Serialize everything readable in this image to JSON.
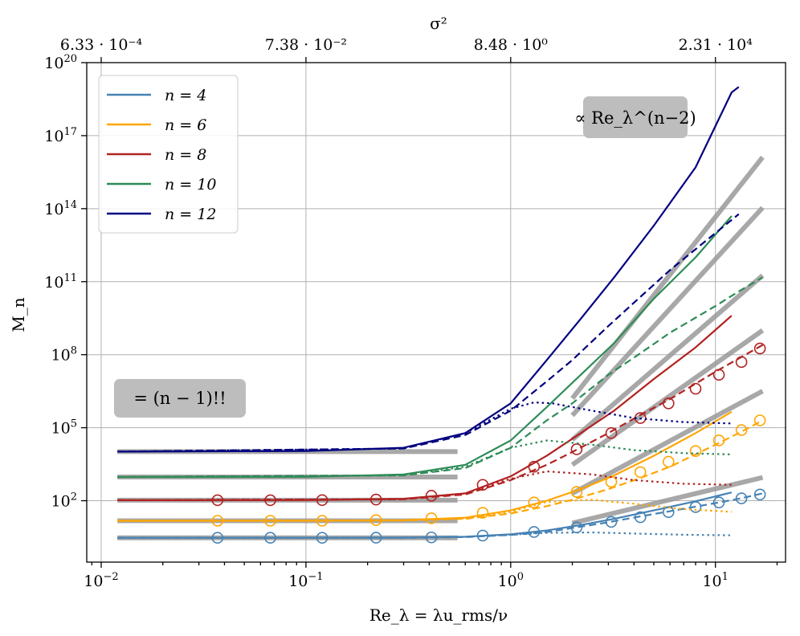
{
  "chart_data": {
    "type": "line",
    "title": "",
    "xlabel": "Re_λ = λu_rms/ν",
    "ylabel": "M_n",
    "x_scale": "log",
    "y_scale": "log",
    "xlim": [
      0.0085,
      22
    ],
    "ylim": [
      0.3,
      1e+20
    ],
    "grid": true,
    "x_ticks": [
      0.01,
      0.1,
      1,
      10
    ],
    "y_ticks": [
      100,
      100000,
      100000000,
      100000000000,
      100000000000000,
      100000000000000000,
      100000000000000000000
    ],
    "top_axis": {
      "label": "σ²",
      "ticks": [
        {
          "x": 0.01,
          "label": "6.33 · 10⁻⁴"
        },
        {
          "x": 0.1,
          "label": "7.38 · 10⁻²"
        },
        {
          "x": 1,
          "label": "8.48 · 10⁰"
        },
        {
          "x": 10,
          "label": "2.31 · 10⁴"
        }
      ]
    },
    "legend": {
      "placement": "upper-left",
      "entries": [
        {
          "n": 4,
          "label": "n = 4",
          "color": "#4682b4"
        },
        {
          "n": 6,
          "label": "n = 6",
          "color": "#ffa500"
        },
        {
          "n": 8,
          "label": "n = 8",
          "color": "#b22222"
        },
        {
          "n": 10,
          "label": "n = 10",
          "color": "#2e8b57"
        },
        {
          "n": 12,
          "label": "n = 12",
          "color": "#000080"
        }
      ]
    },
    "annotations": [
      {
        "text": "∝ Re_λ^(n−2)",
        "placement": "upper-right"
      },
      {
        "text": "= (n − 1)!!",
        "placement": "lower-left"
      }
    ],
    "reference_lines": {
      "color": "#999999",
      "plateaus": [
        {
          "n": 4,
          "value": 3,
          "x_range": [
            0.012,
            0.55
          ]
        },
        {
          "n": 6,
          "value": 15,
          "x_range": [
            0.012,
            0.55
          ]
        },
        {
          "n": 8,
          "value": 105,
          "x_range": [
            0.012,
            0.55
          ]
        },
        {
          "n": 10,
          "value": 945,
          "x_range": [
            0.012,
            0.55
          ]
        },
        {
          "n": 12,
          "value": 10395,
          "x_range": [
            0.012,
            0.55
          ]
        }
      ],
      "power_laws": [
        {
          "n": 4,
          "x": [
            2.0,
            17.0
          ],
          "y": [
            12,
            900
          ]
        },
        {
          "n": 6,
          "x": [
            2.0,
            17.0
          ],
          "y": [
            200,
            3200000
          ]
        },
        {
          "n": 8,
          "x": [
            2.0,
            17.0
          ],
          "y": [
            3000,
            1000000000
          ]
        },
        {
          "n": 10,
          "x": [
            2.0,
            17.0
          ],
          "y": [
            32000,
            180000000000
          ]
        },
        {
          "n": 12,
          "x": [
            2.0,
            17.0
          ],
          "y": [
            320000,
            110000000000000
          ]
        },
        {
          "n": 14,
          "x": [
            2.0,
            17.0
          ],
          "y": [
            1600000,
            1.3e+16
          ]
        }
      ]
    },
    "series": [
      {
        "n": 4,
        "name": "n = 4",
        "color": "#4682b4",
        "style": "solid",
        "x": [
          0.012,
          0.1,
          0.3,
          0.6,
          1.0,
          1.5,
          2.2,
          3.2,
          5.0,
          8.0,
          12.0
        ],
        "y": [
          3,
          3,
          3.05,
          3.3,
          4.2,
          6,
          10,
          18,
          40,
          95,
          220
        ]
      },
      {
        "n": 4,
        "name": "n = 4 dashed",
        "color": "#4682b4",
        "style": "dashed",
        "x": [
          0.012,
          0.3,
          0.6,
          1.0,
          1.5,
          2.0,
          3.0,
          4.2,
          6.0,
          10.0,
          13.0,
          17.0
        ],
        "y": [
          3,
          3,
          3.2,
          3.9,
          5.2,
          7.5,
          13,
          22,
          37,
          80,
          120,
          200
        ]
      },
      {
        "n": 4,
        "name": "n = 4 dotted",
        "color": "#4682b4",
        "style": "dotted",
        "x": [
          0.012,
          0.3,
          0.6,
          1.0,
          1.5,
          2.5,
          4.0,
          7.0,
          12.0
        ],
        "y": [
          3,
          3.02,
          3.25,
          4.0,
          4.8,
          5.0,
          4.5,
          4.0,
          3.8
        ]
      },
      {
        "n": 4,
        "name": "n = 4 markers",
        "color": "#4682b4",
        "style": "markers",
        "x": [
          0.037,
          0.067,
          0.12,
          0.22,
          0.41,
          0.73,
          1.3,
          2.1,
          3.1,
          4.3,
          5.9,
          8.0,
          10.4,
          13.4,
          16.5
        ],
        "y": [
          3,
          3,
          3,
          3.02,
          3.1,
          3.7,
          5.2,
          8.0,
          13.5,
          21,
          34,
          55,
          85,
          125,
          180
        ]
      },
      {
        "n": 6,
        "name": "n = 6",
        "color": "#ffa500",
        "style": "solid",
        "x": [
          0.012,
          0.1,
          0.3,
          0.6,
          1.0,
          1.5,
          2.2,
          3.2,
          5.0,
          8.0,
          12.0
        ],
        "y": [
          15,
          15,
          16,
          20,
          40,
          100,
          300,
          1100,
          7000,
          60000,
          450000
        ]
      },
      {
        "n": 6,
        "name": "n = 6 dashed",
        "color": "#ffa500",
        "style": "dashed",
        "x": [
          0.012,
          0.3,
          0.6,
          1.0,
          1.5,
          2.0,
          3.0,
          4.2,
          6.0,
          10.0,
          13.0,
          17.0
        ],
        "y": [
          15,
          15.5,
          18,
          30,
          60,
          110,
          300,
          800,
          2500,
          20000,
          60000,
          200000
        ]
      },
      {
        "n": 6,
        "name": "n = 6 dotted",
        "color": "#ffa500",
        "style": "dotted",
        "x": [
          0.012,
          0.3,
          0.6,
          1.0,
          1.5,
          2.5,
          4.0,
          7.0,
          12.0
        ],
        "y": [
          15,
          15.5,
          19,
          35,
          90,
          110,
          75,
          45,
          35
        ]
      },
      {
        "n": 6,
        "name": "n = 6 markers",
        "color": "#ffa500",
        "style": "markers",
        "x": [
          0.037,
          0.067,
          0.12,
          0.22,
          0.41,
          0.73,
          1.3,
          2.1,
          3.1,
          4.3,
          5.9,
          8.0,
          10.4,
          13.4,
          16.5
        ],
        "y": [
          15,
          15,
          15,
          16,
          19,
          32,
          85,
          230,
          600,
          1500,
          4000,
          11000,
          30000,
          80000,
          200000
        ]
      },
      {
        "n": 8,
        "name": "n = 8",
        "color": "#b22222",
        "style": "solid",
        "x": [
          0.012,
          0.1,
          0.3,
          0.6,
          1.0,
          1.5,
          2.2,
          3.2,
          5.0,
          8.0,
          12.0
        ],
        "y": [
          105,
          106,
          120,
          200,
          1000,
          7000,
          60000,
          500000,
          10000000,
          200000000,
          4000000000
        ]
      },
      {
        "n": 8,
        "name": "n = 8 dashed",
        "color": "#b22222",
        "style": "dashed",
        "x": [
          0.012,
          0.3,
          0.6,
          1.0,
          1.5,
          2.0,
          3.0,
          4.2,
          6.0,
          10.0,
          13.0,
          17.0
        ],
        "y": [
          105,
          115,
          180,
          700,
          3000,
          10000,
          60000,
          300000,
          1500000,
          20000000,
          70000000,
          250000000
        ]
      },
      {
        "n": 8,
        "name": "n = 8 dotted",
        "color": "#b22222",
        "style": "dotted",
        "x": [
          0.012,
          0.3,
          0.6,
          1.0,
          1.5,
          2.5,
          4.0,
          7.0,
          12.0
        ],
        "y": [
          105,
          115,
          200,
          800,
          1600,
          1200,
          700,
          500,
          450
        ]
      },
      {
        "n": 8,
        "name": "n = 8 markers",
        "color": "#b22222",
        "style": "markers",
        "x": [
          0.037,
          0.067,
          0.12,
          0.22,
          0.41,
          0.73,
          1.3,
          2.1,
          3.1,
          4.3,
          5.9,
          8.0,
          10.4,
          13.4,
          16.5
        ],
        "y": [
          105,
          105,
          106,
          112,
          160,
          450,
          2500,
          13000,
          60000,
          250000,
          1000000,
          4000000,
          15000000,
          50000000,
          180000000
        ]
      },
      {
        "n": 10,
        "name": "n = 10",
        "color": "#2e8b57",
        "style": "solid",
        "x": [
          0.012,
          0.1,
          0.3,
          0.6,
          1.0,
          1.5,
          2.2,
          3.2,
          5.0,
          8.0,
          12.0
        ],
        "y": [
          945,
          960,
          1200,
          3000,
          30000,
          700000,
          15000000,
          300000000,
          20000000000,
          1000000000000,
          50000000000000
        ]
      },
      {
        "n": 10,
        "name": "n = 10 dashed",
        "color": "#2e8b57",
        "style": "dashed",
        "x": [
          0.012,
          0.3,
          0.6,
          1.0,
          1.5,
          2.0,
          3.0,
          4.2,
          6.0,
          10.0,
          13.0,
          17.0
        ],
        "y": [
          945,
          1100,
          2200,
          15000,
          200000,
          1000000,
          15000000,
          100000000,
          800000000,
          10000000000,
          40000000000,
          150000000000
        ]
      },
      {
        "n": 10,
        "name": "n = 10 dotted",
        "color": "#2e8b57",
        "style": "dotted",
        "x": [
          0.012,
          0.3,
          0.6,
          1.0,
          1.5,
          2.5,
          4.0,
          7.0,
          12.0
        ],
        "y": [
          945,
          1100,
          2500,
          15000,
          30000,
          20000,
          12000,
          9000,
          8000
        ]
      },
      {
        "n": 12,
        "name": "n = 12",
        "color": "#000080",
        "style": "solid",
        "x": [
          0.012,
          0.1,
          0.3,
          0.6,
          1.0,
          1.5,
          2.2,
          3.2,
          5.0,
          8.0,
          12.0,
          13.0
        ],
        "y": [
          10395,
          11000,
          15000,
          60000,
          1000000,
          60000000,
          3000000000,
          150000000000,
          20000000000000,
          5000000000000000.0,
          6e+18,
          1e+19
        ]
      },
      {
        "n": 12,
        "name": "n = 12 dashed",
        "color": "#000080",
        "style": "dashed",
        "x": [
          0.012,
          0.3,
          0.6,
          1.0,
          1.5,
          2.0,
          3.0,
          4.2,
          6.0,
          10.0,
          13.0
        ],
        "y": [
          10395,
          14000,
          50000,
          500000,
          8000000,
          60000000,
          1500000000,
          20000000000,
          300000000000,
          10000000000000,
          60000000000000
        ]
      },
      {
        "n": 12,
        "name": "n = 12 dotted",
        "color": "#000080",
        "style": "dotted",
        "x": [
          0.012,
          0.3,
          0.6,
          1.0,
          1.3,
          1.6,
          2.5,
          4.0,
          7.0,
          12.0
        ],
        "y": [
          10395,
          14000,
          60000,
          600000,
          1100000,
          1000000,
          500000,
          250000,
          170000,
          150000
        ]
      }
    ]
  }
}
